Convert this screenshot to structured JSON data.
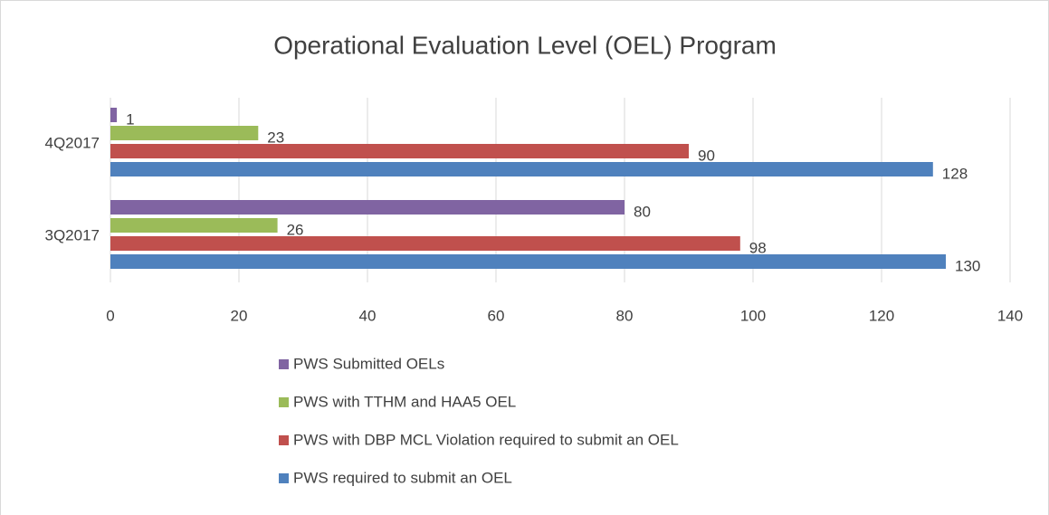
{
  "chart_data": {
    "type": "hbar",
    "title": "Operational Evaluation Level (OEL) Program",
    "categories": [
      "3Q2017",
      "4Q2017"
    ],
    "series": [
      {
        "name": "PWS Submitted OELs",
        "color": "#8064a2",
        "values": [
          80,
          1
        ]
      },
      {
        "name": "PWS with TTHM and HAA5 OEL",
        "color": "#9bbb59",
        "values": [
          26,
          23
        ]
      },
      {
        "name": "PWS with DBP MCL Violation required to submit an OEL",
        "color": "#c0504d",
        "values": [
          98,
          90
        ]
      },
      {
        "name": "PWS required to submit an OEL",
        "color": "#4f81bd",
        "values": [
          130,
          128
        ]
      }
    ],
    "xlim": [
      0,
      140
    ],
    "xticks": [
      0,
      20,
      40,
      60,
      80,
      100,
      120,
      140
    ],
    "grid": true,
    "legend": "bottom"
  }
}
